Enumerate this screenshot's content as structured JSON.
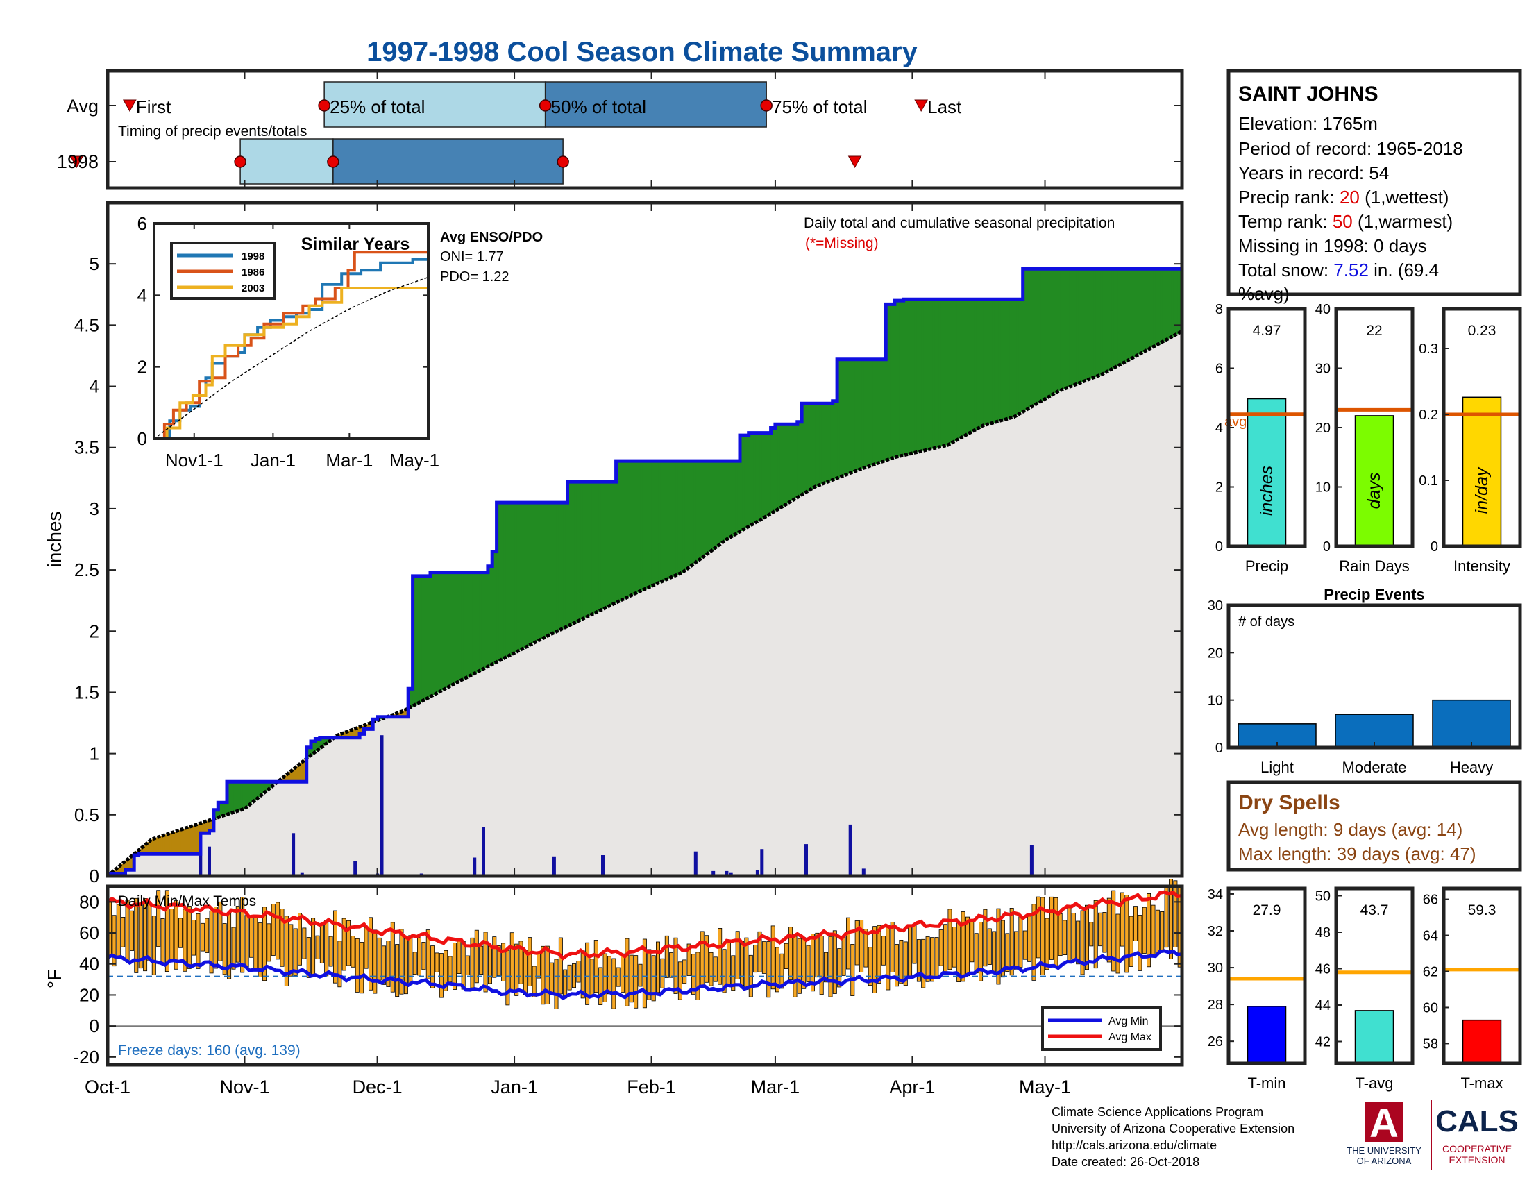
{
  "title": "1997-1998 Cool Season Climate Summary",
  "colors": {
    "title": "#0b4f9c",
    "frame": "#222222",
    "cum_line": "#1010e0",
    "avg_line": "#000000",
    "surplus": "#228b22",
    "deficit": "#b8860b",
    "below": "#e8e6e4",
    "timing_light": "#add8e6",
    "timing_dark": "#4682b4",
    "marker": "#e60000",
    "temp_bar": "#f5a623",
    "avg_max": "#ee1111",
    "avg_min": "#1010e0",
    "freeze": "#1f6fbf",
    "bar_precip": "#40e0d0",
    "bar_raindays": "#7cfc00",
    "bar_intensity": "#ffd700",
    "avg_ref": "#dd5500",
    "events": "#0a6ebd",
    "tmin": "#0000ff",
    "tavg": "#40e0d0",
    "tmax": "#ff0000",
    "temp_ref": "#ffa500",
    "dry": "#8b4513",
    "red_text": "#dd0000",
    "blue_text": "#1010e0",
    "ua_red": "#ab0520",
    "ua_navy": "#0c234b"
  },
  "timing": {
    "caption": "Timing of precip events/totals",
    "rows": [
      "Avg",
      "1998"
    ],
    "labels": {
      "first": "First",
      "p25": "25% of total",
      "p50": "50% of total",
      "p75": "75% of total",
      "last": "Last"
    },
    "avg_days": {
      "first": 5,
      "p25": 49,
      "p50": 99,
      "p75": 149,
      "last": 184
    },
    "y1998_days": {
      "first": -7,
      "p25": 30,
      "p50": 51,
      "p75": 103,
      "last": 169
    },
    "icons": {
      "first": "triangle-down-icon",
      "last": "triangle-down-icon",
      "pct": "circle-marker-icon"
    }
  },
  "station": {
    "name": "SAINT JOHNS",
    "elevation": "Elevation: 1765m",
    "period": "Period of record: 1965-2018",
    "years": "Years in record: 54",
    "precip_rank_label": "Precip rank: ",
    "precip_rank_value": "20",
    "precip_rank_note": " (1,wettest)",
    "temp_rank_label": "Temp rank: ",
    "temp_rank_value": "50",
    "temp_rank_note": " (1,warmest)",
    "missing": "Missing in 1998: 0 days",
    "snow_label": "Total snow: ",
    "snow_value": "7.52",
    "snow_note": " in. (69.4",
    "snow_note2": "%avg)"
  },
  "main_chart": {
    "ylabel": "inches",
    "ylim": [
      0,
      5.5
    ],
    "yticks": [
      "0",
      "0.5",
      "1",
      "1.5",
      "2",
      "2.5",
      "3",
      "3.5",
      "4",
      "4.5",
      "5"
    ],
    "annotation": "Daily total and cumulative seasonal precipitation",
    "missing_note": "(*=Missing)",
    "date_ticks": [
      "Oct-1",
      "Nov-1",
      "Dec-1",
      "Jan-1",
      "Feb-1",
      "Mar-1",
      "Apr-1",
      "May-1"
    ]
  },
  "enso": {
    "title": "Avg ENSO/PDO",
    "oni": "ONI= 1.77",
    "pdo": "PDO= 1.22"
  },
  "similar_years": {
    "title": "Similar Years",
    "yticks": [
      "0",
      "2",
      "4",
      "6"
    ],
    "xticks": [
      "Nov1-1",
      "Jan-1",
      "Mar-1",
      "May-1"
    ],
    "legend": [
      "1998",
      "1986",
      "2003"
    ],
    "series_colors": [
      "#1f77b4",
      "#d95319",
      "#edb120"
    ]
  },
  "temp_chart": {
    "title": "Daily Min/Max Temps",
    "ylabel": "°F",
    "yticks": [
      "-20",
      "0",
      "20",
      "40",
      "60",
      "80"
    ],
    "freeze_text": "Freeze days: 160 (avg. 139)",
    "legend": [
      "Avg Min",
      "Avg Max"
    ]
  },
  "summary_bars": [
    {
      "label": "Precip",
      "value": 4.97,
      "value_text": "4.97",
      "avg": 4.45,
      "unit": "inches",
      "yticks": [
        "0",
        "2",
        "4",
        "6",
        "8"
      ],
      "ylim": [
        0,
        8
      ],
      "avg_text": "avg"
    },
    {
      "label": "Rain Days",
      "value": 22,
      "value_text": "22",
      "avg": 23,
      "unit": "days",
      "yticks": [
        "0",
        "10",
        "20",
        "30",
        "40"
      ],
      "ylim": [
        0,
        40
      ]
    },
    {
      "label": "Intensity",
      "value": 0.226,
      "value_text": "0.23",
      "avg": 0.2,
      "unit": "in/day",
      "yticks": [
        "0",
        "0.1",
        "0.2",
        "0.3"
      ],
      "ylim": [
        0,
        0.36
      ]
    }
  ],
  "precip_events": {
    "title": "Precip Events",
    "ylabel_text": "# of days",
    "categories": [
      "Light",
      "Moderate",
      "Heavy"
    ],
    "values": [
      5,
      7,
      10
    ],
    "yticks": [
      "0",
      "10",
      "20",
      "30"
    ],
    "ylim": [
      0,
      30
    ]
  },
  "dry_spells": {
    "title": "Dry Spells",
    "avg_length": "Avg length: 9 days (avg: 14)",
    "max_length": "Max length: 39 days (avg: 47)"
  },
  "temp_bars": [
    {
      "label": "T-min",
      "value": 27.9,
      "value_text": "27.9",
      "avg": 29.4,
      "yticks": [
        "26",
        "28",
        "30",
        "32",
        "34"
      ],
      "ylim": [
        24.8,
        34.3
      ]
    },
    {
      "label": "T-avg",
      "value": 43.7,
      "value_text": "43.7",
      "avg": 45.8,
      "yticks": [
        "42",
        "44",
        "46",
        "48",
        "50"
      ],
      "ylim": [
        40.8,
        50.4
      ]
    },
    {
      "label": "T-max",
      "value": 59.3,
      "value_text": "59.3",
      "avg": 62.1,
      "yticks": [
        "58",
        "60",
        "62",
        "64",
        "66"
      ],
      "ylim": [
        56.9,
        66.6
      ]
    }
  ],
  "footer": {
    "line1": "Climate Science Applications Program",
    "line2": "University of Arizona Cooperative Extension",
    "line3": "http://cals.arizona.edu/climate",
    "line4": " Date created: 26-Oct-2018"
  },
  "logos": {
    "ua_letter": "A",
    "ua_line1": "THE UNIVERSITY",
    "ua_line2": "OF ARIZONA",
    "cals": "CALS",
    "cals_line1": "COOPERATIVE",
    "cals_line2": "EXTENSION"
  },
  "chart_data": [
    {
      "type": "area",
      "title": "Daily total and cumulative seasonal precipitation",
      "ylabel": "inches",
      "ylim": [
        0,
        5.5
      ],
      "x_unit": "days since Oct-1",
      "cumulative_1998": [
        [
          0,
          0.02
        ],
        [
          4,
          0.05
        ],
        [
          6,
          0.17
        ],
        [
          7,
          0.18
        ],
        [
          20,
          0.18
        ],
        [
          21,
          0.35
        ],
        [
          23,
          0.37
        ],
        [
          24,
          0.54
        ],
        [
          25,
          0.6
        ],
        [
          27,
          0.77
        ],
        [
          44,
          0.77
        ],
        [
          45,
          1.05
        ],
        [
          46,
          1.1
        ],
        [
          47,
          1.12
        ],
        [
          48,
          1.13
        ],
        [
          57,
          1.16
        ],
        [
          58,
          1.2
        ],
        [
          60,
          1.28
        ],
        [
          61,
          1.3
        ],
        [
          67,
          1.3
        ],
        [
          68,
          1.53
        ],
        [
          69,
          2.45
        ],
        [
          73,
          2.48
        ],
        [
          74,
          2.48
        ],
        [
          78,
          2.48
        ],
        [
          85,
          2.48
        ],
        [
          86,
          2.53
        ],
        [
          87,
          2.65
        ],
        [
          88,
          3.05
        ],
        [
          92,
          3.05
        ],
        [
          95,
          3.05
        ],
        [
          103,
          3.05
        ],
        [
          104,
          3.22
        ],
        [
          114,
          3.22
        ],
        [
          115,
          3.39
        ],
        [
          142,
          3.39
        ],
        [
          143,
          3.6
        ],
        [
          145,
          3.62
        ],
        [
          150,
          3.66
        ],
        [
          151,
          3.69
        ],
        [
          152,
          3.69
        ],
        [
          156,
          3.71
        ],
        [
          157,
          3.86
        ],
        [
          164,
          3.88
        ],
        [
          165,
          4.22
        ],
        [
          175,
          4.22
        ],
        [
          176,
          4.67
        ],
        [
          177,
          4.67
        ],
        [
          178,
          4.7
        ],
        [
          180,
          4.71
        ],
        [
          181,
          4.71
        ],
        [
          206,
          4.71
        ],
        [
          207,
          4.96
        ],
        [
          212,
          4.96
        ],
        [
          243,
          4.97
        ]
      ],
      "average_cumulative": [
        [
          0,
          0
        ],
        [
          10,
          0.3
        ],
        [
          31,
          0.55
        ],
        [
          45,
          0.96
        ],
        [
          52,
          1.15
        ],
        [
          67,
          1.35
        ],
        [
          80,
          1.6
        ],
        [
          100,
          1.97
        ],
        [
          120,
          2.32
        ],
        [
          130,
          2.48
        ],
        [
          140,
          2.75
        ],
        [
          150,
          2.96
        ],
        [
          160,
          3.18
        ],
        [
          170,
          3.32
        ],
        [
          178,
          3.42
        ],
        [
          190,
          3.52
        ],
        [
          198,
          3.68
        ],
        [
          205,
          3.75
        ],
        [
          215,
          3.96
        ],
        [
          225,
          4.1
        ],
        [
          243,
          4.45
        ]
      ],
      "daily_totals": [
        [
          21,
          0.35
        ],
        [
          23,
          0.24
        ],
        [
          42,
          0.35
        ],
        [
          44,
          0.03
        ],
        [
          56,
          0.12
        ],
        [
          61,
          0.02
        ],
        [
          62,
          1.15
        ],
        [
          71,
          0.02
        ],
        [
          83,
          0.15
        ],
        [
          85,
          0.4
        ],
        [
          101,
          0.16
        ],
        [
          112,
          0.17
        ],
        [
          133,
          0.2
        ],
        [
          137,
          0.04
        ],
        [
          140,
          0.04
        ],
        [
          141,
          0.03
        ],
        [
          147,
          0.05
        ],
        [
          148,
          0.22
        ],
        [
          158,
          0.26
        ],
        [
          168,
          0.42
        ],
        [
          171,
          0.06
        ],
        [
          209,
          0.25
        ]
      ]
    },
    {
      "type": "line",
      "title": "Similar Years",
      "ylim": [
        0,
        6
      ],
      "series": [
        {
          "name": "1998",
          "values": [
            [
              0,
              0
            ],
            [
              7,
              0
            ],
            [
              12,
              0.5
            ],
            [
              20,
              0.8
            ],
            [
              28,
              0.9
            ],
            [
              35,
              1.2
            ],
            [
              40,
              1.7
            ],
            [
              45,
              2.1
            ],
            [
              55,
              2.3
            ],
            [
              65,
              2.4
            ],
            [
              70,
              2.9
            ],
            [
              80,
              3.1
            ],
            [
              90,
              3.3
            ],
            [
              100,
              3.4
            ],
            [
              110,
              3.5
            ],
            [
              120,
              3.6
            ],
            [
              130,
              4.3
            ],
            [
              145,
              4.6
            ],
            [
              160,
              4.7
            ],
            [
              175,
              4.9
            ],
            [
              190,
              4.9
            ],
            [
              200,
              5
            ],
            [
              212,
              5
            ]
          ]
        },
        {
          "name": "1986",
          "values": [
            [
              0,
              0
            ],
            [
              8,
              0.4
            ],
            [
              15,
              0.8
            ],
            [
              25,
              1
            ],
            [
              35,
              1.6
            ],
            [
              45,
              1.7
            ],
            [
              55,
              2.3
            ],
            [
              65,
              2.6
            ],
            [
              75,
              2.8
            ],
            [
              85,
              3.2
            ],
            [
              100,
              3.5
            ],
            [
              115,
              3.7
            ],
            [
              125,
              3.9
            ],
            [
              140,
              4.2
            ],
            [
              150,
              4.7
            ],
            [
              155,
              5.2
            ],
            [
              175,
              5.2
            ],
            [
              212,
              5.1
            ]
          ]
        },
        {
          "name": "2003",
          "values": [
            [
              0,
              0
            ],
            [
              10,
              0.3
            ],
            [
              20,
              1
            ],
            [
              30,
              1.2
            ],
            [
              40,
              1.5
            ],
            [
              45,
              2.3
            ],
            [
              55,
              2.6
            ],
            [
              70,
              2.9
            ],
            [
              85,
              3.1
            ],
            [
              100,
              3.2
            ],
            [
              110,
              3.4
            ],
            [
              120,
              3.7
            ],
            [
              130,
              3.8
            ],
            [
              145,
              4.2
            ],
            [
              160,
              4.2
            ],
            [
              212,
              4.2
            ]
          ]
        },
        {
          "name": "Average",
          "values": [
            [
              0,
              0
            ],
            [
              30,
              0.8
            ],
            [
              60,
              1.6
            ],
            [
              90,
              2.3
            ],
            [
              120,
              3
            ],
            [
              150,
              3.6
            ],
            [
              180,
              4.1
            ],
            [
              212,
              4.5
            ]
          ]
        }
      ]
    },
    {
      "type": "line",
      "title": "Daily Min/Max Temps",
      "ylabel": "°F",
      "ylim": [
        -25,
        90
      ],
      "avg_max": [
        [
          0,
          80
        ],
        [
          15,
          77
        ],
        [
          30,
          73
        ],
        [
          45,
          68
        ],
        [
          60,
          62
        ],
        [
          75,
          56
        ],
        [
          90,
          50
        ],
        [
          105,
          46
        ],
        [
          120,
          48
        ],
        [
          135,
          52
        ],
        [
          150,
          56
        ],
        [
          165,
          59
        ],
        [
          180,
          64
        ],
        [
          195,
          68
        ],
        [
          210,
          73
        ],
        [
          225,
          79
        ],
        [
          243,
          86
        ]
      ],
      "avg_min": [
        [
          0,
          44
        ],
        [
          15,
          41
        ],
        [
          30,
          38
        ],
        [
          45,
          34
        ],
        [
          60,
          30
        ],
        [
          75,
          27
        ],
        [
          90,
          22
        ],
        [
          105,
          20
        ],
        [
          120,
          21
        ],
        [
          135,
          24
        ],
        [
          150,
          27
        ],
        [
          165,
          29
        ],
        [
          180,
          31
        ],
        [
          195,
          34
        ],
        [
          210,
          38
        ],
        [
          225,
          43
        ],
        [
          243,
          48
        ]
      ],
      "freeze_line": 32
    },
    {
      "type": "bar",
      "title": "Precip",
      "categories": [
        "Precip"
      ],
      "values": [
        4.97
      ],
      "ylim": [
        0,
        8
      ]
    },
    {
      "type": "bar",
      "title": "Rain Days",
      "categories": [
        "Rain Days"
      ],
      "values": [
        22
      ],
      "ylim": [
        0,
        40
      ]
    },
    {
      "type": "bar",
      "title": "Intensity",
      "categories": [
        "Intensity"
      ],
      "values": [
        0.23
      ],
      "ylim": [
        0,
        0.36
      ]
    },
    {
      "type": "bar",
      "title": "Precip Events",
      "categories": [
        "Light",
        "Moderate",
        "Heavy"
      ],
      "values": [
        5,
        7,
        10
      ],
      "ylim": [
        0,
        30
      ]
    },
    {
      "type": "bar",
      "title": "T-min",
      "categories": [
        "T-min"
      ],
      "values": [
        27.9
      ],
      "ylim": [
        24.8,
        34.3
      ]
    },
    {
      "type": "bar",
      "title": "T-avg",
      "categories": [
        "T-avg"
      ],
      "values": [
        43.7
      ],
      "ylim": [
        40.8,
        50.4
      ]
    },
    {
      "type": "bar",
      "title": "T-max",
      "categories": [
        "T-max"
      ],
      "values": [
        59.3
      ],
      "ylim": [
        56.9,
        66.6
      ]
    }
  ]
}
